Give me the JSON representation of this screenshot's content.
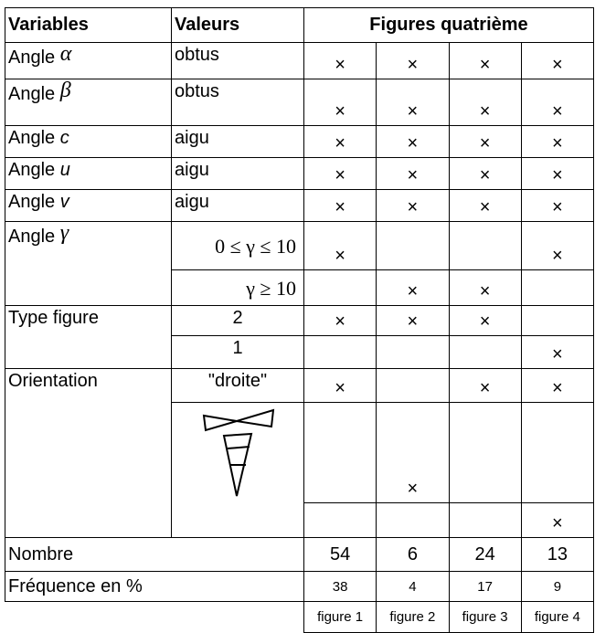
{
  "header": [
    "Variables",
    "Valeurs",
    "Figures quatrième"
  ],
  "groups": [
    {
      "label": "Angle",
      "symbol": "α",
      "rows": [
        {
          "value": "obtus",
          "marks": [
            "×",
            "×",
            "×",
            "×"
          ]
        }
      ]
    },
    {
      "label": "Angle",
      "symbol": "β",
      "rows": [
        {
          "value": "obtus",
          "marks": [
            "×",
            "×",
            "×",
            "×"
          ]
        }
      ]
    },
    {
      "label": "Angle",
      "symbol": "c",
      "rows": [
        {
          "value": "aigu",
          "marks": [
            "×",
            "×",
            "×",
            "×"
          ]
        }
      ]
    },
    {
      "label": "Angle",
      "symbol": "u",
      "rows": [
        {
          "value": "aigu",
          "marks": [
            "×",
            "×",
            "×",
            "×"
          ]
        }
      ]
    },
    {
      "label": "Angle",
      "symbol": "v",
      "rows": [
        {
          "value": "aigu",
          "marks": [
            "×",
            "×",
            "×",
            "×"
          ]
        }
      ]
    },
    {
      "label": "Angle",
      "symbol": "γ",
      "rows": [
        {
          "value": "0 ≤ γ ≤ 10",
          "marks": [
            "×",
            null,
            null,
            "×"
          ]
        },
        {
          "value": "γ ≥ 10",
          "marks": [
            null,
            "×",
            "×",
            null
          ]
        }
      ]
    },
    {
      "label": "Type figure",
      "rows": [
        {
          "value": "2",
          "marks": [
            "×",
            "×",
            "×",
            null
          ]
        },
        {
          "value": "1",
          "marks": [
            null,
            null,
            null,
            "×"
          ]
        }
      ]
    },
    {
      "label": "Orientation",
      "rows": [
        {
          "value": "\"droite\"",
          "marks": [
            "×",
            null,
            "×",
            "×"
          ]
        },
        {
          "value": null,
          "marks": [
            null,
            "×",
            null,
            null
          ]
        },
        {
          "value": null,
          "marks": [
            null,
            null,
            null,
            "×"
          ]
        }
      ]
    }
  ],
  "totals": [
    {
      "label": "Nombre",
      "values": [
        54,
        6,
        24,
        13
      ]
    },
    {
      "label": "Fréquence en %",
      "values": [
        38,
        4,
        17,
        9
      ]
    }
  ],
  "footer": [
    "figure 1",
    "figure 2",
    "figure 3",
    "figure 4"
  ]
}
